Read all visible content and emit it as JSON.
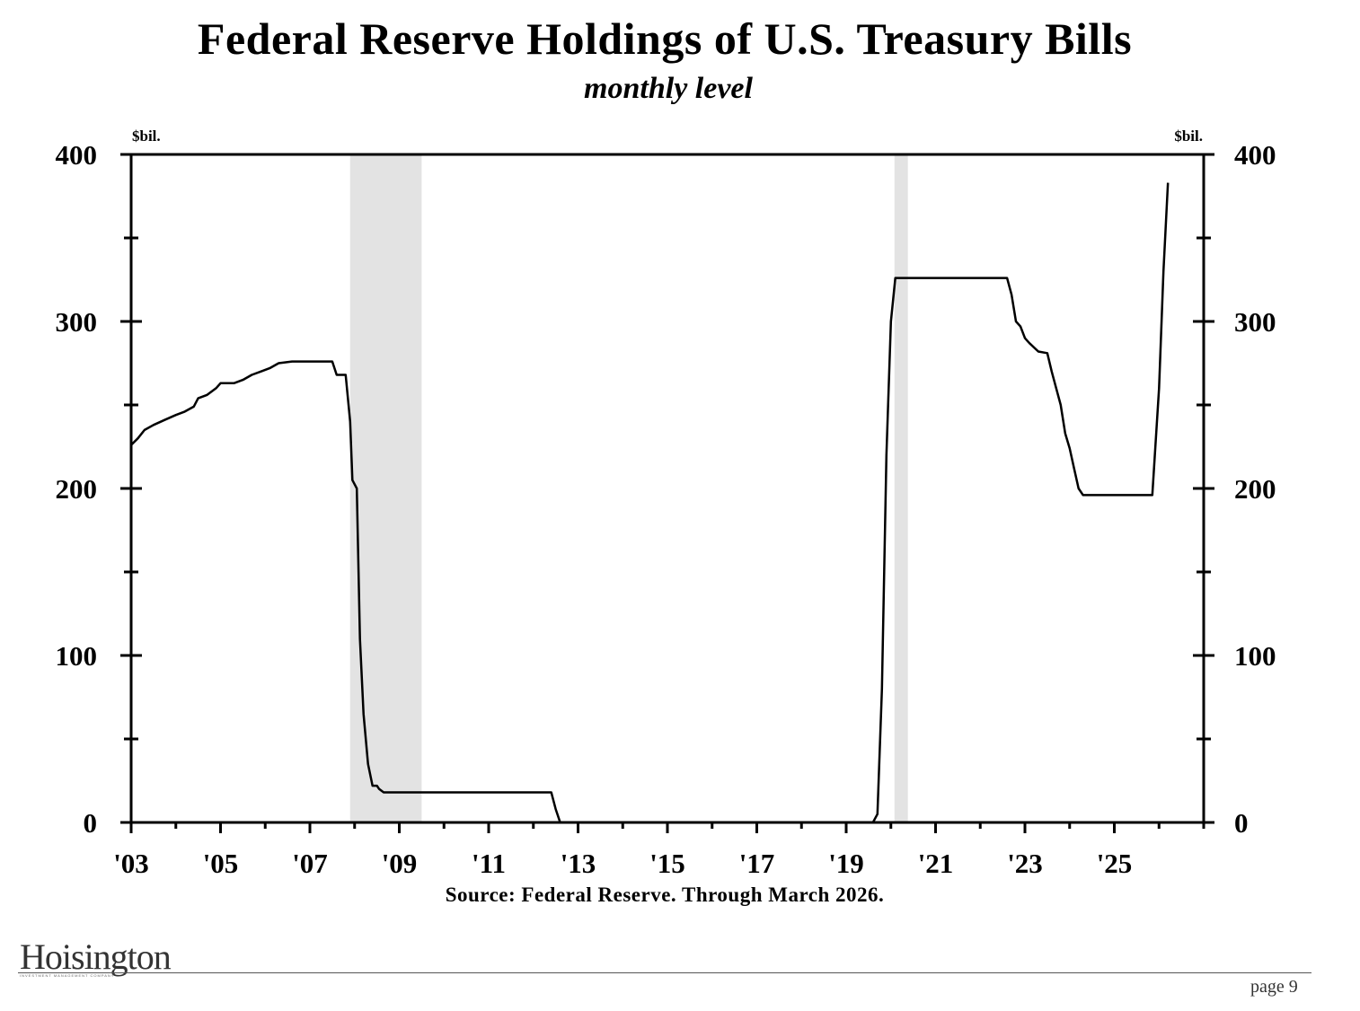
{
  "chart_data": {
    "type": "line",
    "title": "Federal Reserve Holdings of U.S. Treasury Bills",
    "subtitle": "monthly level",
    "ylabel_left": "$bil.",
    "ylabel_right": "$bil.",
    "ylim": [
      0,
      400
    ],
    "yticks": [
      0,
      100,
      200,
      300,
      400
    ],
    "xlim": [
      2003.0,
      2027.0
    ],
    "xtick_labels": [
      "'03",
      "'05",
      "'07",
      "'09",
      "'11",
      "'13",
      "'15",
      "'17",
      "'19",
      "'21",
      "'23",
      "'25"
    ],
    "xtick_years": [
      2003,
      2005,
      2007,
      2009,
      2011,
      2013,
      2015,
      2017,
      2019,
      2021,
      2023,
      2025
    ],
    "recession_shading": [
      [
        2007.9,
        2009.5
      ],
      [
        2020.08,
        2020.38
      ]
    ],
    "grid": false,
    "series": [
      {
        "x": [
          2003.0,
          2003.15,
          2003.3,
          2003.5,
          2003.75,
          2004.0,
          2004.2,
          2004.4,
          2004.5,
          2004.7,
          2004.9,
          2005.0,
          2005.3,
          2005.5,
          2005.7,
          2005.9,
          2006.1,
          2006.3,
          2006.6,
          2006.9,
          2007.2,
          2007.5,
          2007.6,
          2007.8,
          2007.9,
          2007.95,
          2008.05,
          2008.12,
          2008.2,
          2008.3,
          2008.4,
          2008.5,
          2008.55,
          2008.65,
          2008.8,
          2008.9,
          2009.0,
          2009.5,
          2010.0,
          2011.0,
          2012.0,
          2012.4,
          2012.5,
          2012.6,
          2013.0,
          2015.0,
          2017.0,
          2019.0,
          2019.6,
          2019.7,
          2019.8,
          2019.9,
          2020.0,
          2020.1,
          2020.2,
          2020.5,
          2021.0,
          2022.0,
          2022.6,
          2022.7,
          2022.8,
          2022.9,
          2023.0,
          2023.1,
          2023.3,
          2023.5,
          2023.6,
          2023.7,
          2023.8,
          2023.9,
          2024.0,
          2024.1,
          2024.2,
          2024.3,
          2024.5,
          2025.0,
          2025.5,
          2025.85,
          2026.0,
          2026.1,
          2026.2
        ],
        "y": [
          226,
          230,
          235,
          238,
          241,
          244,
          246,
          249,
          254,
          256,
          260,
          263,
          263,
          265,
          268,
          270,
          272,
          275,
          276,
          276,
          276,
          276,
          268,
          268,
          240,
          205,
          200,
          110,
          65,
          35,
          22,
          22,
          20,
          18,
          18,
          18,
          18,
          18,
          18,
          18,
          18,
          18,
          8,
          0,
          0,
          0,
          0,
          0,
          0,
          5,
          80,
          220,
          300,
          326,
          326,
          326,
          326,
          326,
          326,
          316,
          300,
          297,
          290,
          287,
          282,
          281,
          270,
          260,
          250,
          233,
          224,
          212,
          200,
          196,
          196,
          196,
          196,
          196,
          260,
          330,
          383
        ]
      }
    ],
    "source": "Source: Federal Reserve. Through March 2026."
  },
  "footer": {
    "logo_text": "Hoisington",
    "logo_subtext": "INVESTMENT MANAGEMENT COMPANY",
    "page_label": "page 9"
  }
}
